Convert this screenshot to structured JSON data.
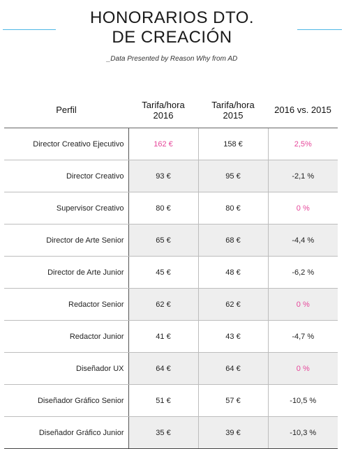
{
  "header": {
    "title_line1": "HONORARIOS DTO.",
    "title_line2": "DE CREACIÓN",
    "subtitle": "_Data Presented by Reason Why from AD"
  },
  "table": {
    "columns": [
      {
        "label": "Perfil"
      },
      {
        "label_line1": "Tarifa/hora",
        "label_line2": "2016"
      },
      {
        "label_line1": "Tarifa/hora",
        "label_line2": "2015"
      },
      {
        "label": "2016 vs. 2015"
      }
    ],
    "rows": [
      {
        "perfil": "Director Creativo Ejecutivo",
        "t2016": "162 €",
        "t2015": "158 €",
        "diff": "2,5%",
        "highlight": true
      },
      {
        "perfil": "Director Creativo",
        "t2016": "93 €",
        "t2015": "95 €",
        "diff": "-2,1 %",
        "highlight": false
      },
      {
        "perfil": "Supervisor Creativo",
        "t2016": "80 €",
        "t2015": "80 €",
        "diff": "0 %",
        "highlight": false
      },
      {
        "perfil": "Director de Arte Senior",
        "t2016": "65 €",
        "t2015": "68 €",
        "diff": "-4,4 %",
        "highlight": false
      },
      {
        "perfil": "Director de Arte Junior",
        "t2016": "45 €",
        "t2015": "48 €",
        "diff": "-6,2 %",
        "highlight": false
      },
      {
        "perfil": "Redactor Senior",
        "t2016": "62 €",
        "t2015": "62 €",
        "diff": "0 %",
        "highlight": false
      },
      {
        "perfil": "Redactor Junior",
        "t2016": "41 €",
        "t2015": "43 €",
        "diff": "-4,7 %",
        "highlight": false
      },
      {
        "perfil": "Diseñador UX",
        "t2016": "64 €",
        "t2015": "64 €",
        "diff": "0 %",
        "highlight": false
      },
      {
        "perfil": "Diseñador Gráfico Senior",
        "t2016": "51 €",
        "t2015": "57 €",
        "diff": "-10,5 %",
        "highlight": false
      },
      {
        "perfil": "Diseñador Gráfico Junior",
        "t2016": "35 €",
        "t2015": "39 €",
        "diff": "-10,3 %",
        "highlight": false
      }
    ]
  },
  "colors": {
    "accent_line": "#4fb7e6",
    "highlight_text": "#e6479a",
    "row_shade": "#eeeeee"
  }
}
